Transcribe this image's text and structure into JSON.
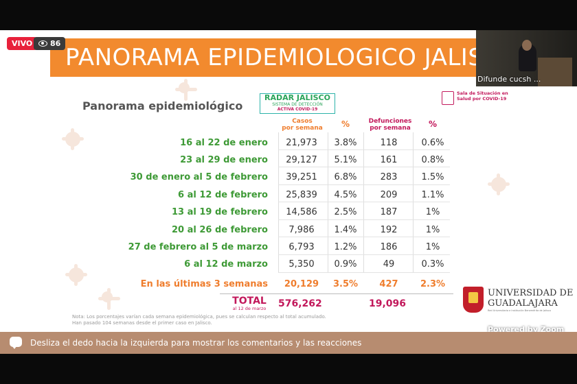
{
  "stream": {
    "live_label": "VIVO",
    "viewer_count": "86",
    "camera_label": "Difunde cucsh ...",
    "powered_by": "Powered by Zoom"
  },
  "slide": {
    "banner_title": "PANORAMA EPIDEMIOLOGICO JALIS",
    "subtitle": "Panorama epidemiológico",
    "radar": {
      "title": "RADAR JALISCO",
      "line1": "SISTEMA DE DETECCIÓN",
      "line2": "ACTIVA COVID-19"
    },
    "sala": {
      "line1": "Sala de Situación en",
      "line2": "Salud por COVID-19"
    },
    "headers": {
      "casos": "Casos",
      "casos_sub": "por semana",
      "pct": "%",
      "defunciones": "Defunciones",
      "defunciones_sub": "por semana",
      "pct2": "%"
    },
    "rows": [
      {
        "label": "16 al 22 de enero",
        "casos": "21,973",
        "pct": "3.8%",
        "def": "118",
        "pct2": "0.6%"
      },
      {
        "label": "23 al 29 de enero",
        "casos": "29,127",
        "pct": "5.1%",
        "def": "161",
        "pct2": "0.8%"
      },
      {
        "label": "30 de enero al 5 de febrero",
        "casos": "39,251",
        "pct": "6.8%",
        "def": "283",
        "pct2": "1.5%"
      },
      {
        "label": "6 al 12 de febrero",
        "casos": "25,839",
        "pct": "4.5%",
        "def": "209",
        "pct2": "1.1%"
      },
      {
        "label": "13 al 19 de febrero",
        "casos": "14,586",
        "pct": "2.5%",
        "def": "187",
        "pct2": "1%"
      },
      {
        "label": "20 al 26 de febrero",
        "casos": "7,986",
        "pct": "1.4%",
        "def": "192",
        "pct2": "1%"
      },
      {
        "label": "27 de febrero al 5 de marzo",
        "casos": "6,793",
        "pct": "1.2%",
        "def": "186",
        "pct2": "1%"
      },
      {
        "label": "6 al 12 de marzo",
        "casos": "5,350",
        "pct": "0.9%",
        "def": "49",
        "pct2": "0.3%"
      }
    ],
    "last_weeks": {
      "label": "En las últimas 3 semanas",
      "casos": "20,129",
      "pct": "3.5%",
      "def": "427",
      "pct2": "2.3%"
    },
    "total": {
      "label": "TOTAL",
      "sub": "al 12 de marzo",
      "casos": "576,262",
      "def": "19,096"
    },
    "note_line1": "Nota: Los porcentajes varían cada semana epidemiológica, pues se calculan respecto al total acumulado.",
    "note_line2": "Han pasado 104 semanas desde el primer caso en Jalisco.",
    "university": {
      "line1": "UNIVERSIDAD DE",
      "line2": "GUADALAJARA",
      "line3": "Red Universitaria e Institución Benemérita de Jalisco"
    }
  },
  "comments": {
    "text": "Desliza el dedo hacia la izquierda para mostrar los comentarios y las reacciones"
  },
  "colors": {
    "banner": "#f28a2e",
    "green_label": "#3e9a36",
    "orange": "#ef7d2d",
    "magenta": "#c2185b",
    "live": "#e8213b"
  }
}
